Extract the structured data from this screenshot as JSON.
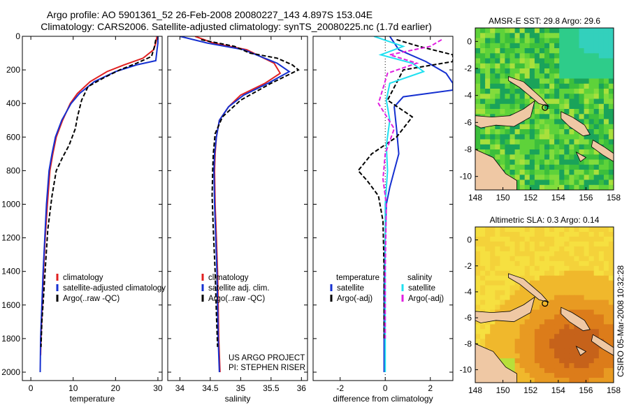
{
  "header": {
    "title_line1": "Argo profile: AO 5901361_52 26-Feb-2008 20080227_143 4.897S 153.04E",
    "title_line2": "Climatology: CARS2006. Satellite-adjusted climatology: synTS_20080225.nc (1.7d earlier)"
  },
  "side_label": "CSIRO 05-Mar-2008 10:32:28",
  "colors": {
    "red": "#e02020",
    "blue": "#1530d0",
    "black": "#000000",
    "cyan": "#20e0f0",
    "magenta": "#e020e0",
    "land": "#efc8a4"
  },
  "chart_data": [
    {
      "type": "line",
      "xlabel": "temperature",
      "ylabel": "",
      "xlim": [
        -2,
        31
      ],
      "ylim": [
        2050,
        0
      ],
      "xticks": [
        0,
        10,
        20,
        30
      ],
      "yticks": [
        0,
        200,
        400,
        600,
        800,
        1000,
        1200,
        1400,
        1600,
        1800,
        2000
      ],
      "legend_position": "lower-right",
      "series": [
        {
          "name": "climatology",
          "color": "red",
          "dash": "",
          "x": [
            29.8,
            29.5,
            29.0,
            26.5,
            22.0,
            18.0,
            14.0,
            11.0,
            9.3,
            7.5,
            6.0,
            5.2,
            4.5,
            3.9,
            3.4,
            3.0,
            2.7,
            2.4,
            2.3
          ],
          "y": [
            0,
            40,
            80,
            130,
            170,
            210,
            270,
            340,
            400,
            500,
            600,
            700,
            800,
            1000,
            1200,
            1400,
            1600,
            1800,
            1900
          ]
        },
        {
          "name": "satellite-adjusted climatology",
          "color": "blue",
          "dash": "",
          "x": [
            30.0,
            30.0,
            29.8,
            29.5,
            25.0,
            20.0,
            15.0,
            11.5,
            9.5,
            7.3,
            5.8,
            5.0,
            4.3,
            3.7,
            3.3,
            2.9,
            2.6,
            2.3,
            2.2
          ],
          "y": [
            0,
            40,
            80,
            145,
            170,
            210,
            270,
            340,
            400,
            500,
            600,
            700,
            800,
            1000,
            1200,
            1400,
            1600,
            1800,
            2000
          ]
        },
        {
          "name": "Argo(..raw -QC)",
          "color": "black",
          "dash": "6,3",
          "x": [
            29.5,
            29.2,
            28.5,
            25.0,
            21.0,
            17.0,
            13.5,
            12.0,
            11.0,
            10.5,
            9.0,
            7.5,
            6.0,
            5.0,
            4.0,
            3.5,
            3.0,
            2.6,
            2.4
          ],
          "y": [
            20,
            60,
            120,
            160,
            200,
            250,
            300,
            380,
            480,
            550,
            650,
            720,
            800,
            950,
            1150,
            1350,
            1550,
            1700,
            1850
          ]
        }
      ]
    },
    {
      "type": "line",
      "xlabel": "salinity",
      "ylabel": "",
      "xlim": [
        33.8,
        36.1
      ],
      "ylim": [
        2050,
        0
      ],
      "xticks": [
        34,
        34.5,
        35,
        35.5,
        36
      ],
      "xtick_labels": [
        "34",
        "34.5",
        "35",
        "35.5",
        "36"
      ],
      "legend_position": "lower-right",
      "series": [
        {
          "name": "climatology",
          "color": "red",
          "dash": "",
          "x": [
            34.25,
            34.55,
            35.1,
            35.55,
            35.65,
            35.4,
            35.0,
            34.8,
            34.65,
            34.6,
            34.58,
            34.57,
            34.58,
            34.6,
            34.62,
            34.63,
            34.64,
            34.65,
            34.66
          ],
          "y": [
            0,
            40,
            80,
            160,
            220,
            280,
            350,
            420,
            500,
            600,
            700,
            800,
            1000,
            1200,
            1400,
            1600,
            1800,
            1900,
            2000
          ]
        },
        {
          "name": "satellite adj. clim.",
          "color": "blue",
          "dash": "",
          "x": [
            34.0,
            34.45,
            35.05,
            35.6,
            35.8,
            35.45,
            35.05,
            34.8,
            34.65,
            34.6,
            34.57,
            34.56,
            34.57,
            34.59,
            34.61,
            34.62,
            34.63,
            34.64,
            34.65
          ],
          "y": [
            0,
            40,
            80,
            160,
            210,
            280,
            350,
            420,
            500,
            600,
            700,
            800,
            1000,
            1200,
            1400,
            1600,
            1800,
            1900,
            2000
          ]
        },
        {
          "name": "Argo(..raw -QC)",
          "color": "black",
          "dash": "6,3",
          "x": [
            34.35,
            34.9,
            35.15,
            35.6,
            35.85,
            35.95,
            35.5,
            35.0,
            34.7,
            34.58,
            34.55,
            34.54,
            34.53,
            34.55,
            34.58,
            34.6,
            34.62
          ],
          "y": [
            20,
            60,
            100,
            130,
            170,
            200,
            280,
            380,
            480,
            580,
            700,
            800,
            950,
            1150,
            1400,
            1650,
            1850
          ]
        }
      ]
    },
    {
      "type": "line",
      "xlabel": "difference from climatology",
      "ylabel": "",
      "xlim": [
        -3.2,
        3.0
      ],
      "ylim": [
        2050,
        0
      ],
      "xticks": [
        -2,
        0,
        2
      ],
      "legend_position": "lower-center",
      "legend_headers": [
        "temperature",
        "salinity"
      ],
      "zero_line": true,
      "series": [
        {
          "name": "satellite",
          "group": "temperature",
          "color": "blue",
          "dash": "",
          "x": [
            0.2,
            0.6,
            1.8,
            2.7,
            3.0,
            3.0,
            0.8,
            0.4,
            0.5,
            0.6,
            0.4,
            0.2,
            0.05,
            0.0,
            -0.05,
            -0.05,
            -0.05
          ],
          "y": [
            0,
            80,
            150,
            220,
            280,
            320,
            360,
            420,
            550,
            700,
            800,
            900,
            1000,
            1200,
            1500,
            1800,
            2000
          ]
        },
        {
          "name": "Argo(-adj)",
          "group": "temperature",
          "color": "black",
          "dash": "6,3",
          "x": [
            0.5,
            1.5,
            3.0,
            3.0,
            0.8,
            0.1,
            1.2,
            0.5,
            -0.6,
            -1.2,
            -0.8,
            -0.3,
            -0.1,
            -0.05,
            -0.05
          ],
          "y": [
            20,
            60,
            110,
            150,
            200,
            380,
            480,
            600,
            700,
            800,
            860,
            950,
            1100,
            1400,
            1800
          ]
        },
        {
          "name": "satellite",
          "group": "salinity",
          "color": "cyan",
          "dash": "",
          "x": [
            -0.5,
            0.8,
            -0.2,
            1.2,
            1.7,
            0.2,
            0.05,
            0.2,
            0.05,
            0.1,
            0.0,
            0.0,
            0.0,
            0.0
          ],
          "y": [
            0,
            60,
            110,
            160,
            210,
            280,
            380,
            500,
            650,
            800,
            1000,
            1400,
            1800,
            2000
          ]
        },
        {
          "name": "Argo(-adj)",
          "group": "salinity",
          "color": "magenta",
          "dash": "6,3",
          "x": [
            2.5,
            2.0,
            0.2,
            1.4,
            0.1,
            -0.3,
            0.4,
            0.0,
            -0.1,
            0.05,
            0.0,
            0.0
          ],
          "y": [
            20,
            60,
            110,
            160,
            220,
            400,
            550,
            700,
            850,
            1000,
            1400,
            1800
          ]
        }
      ]
    }
  ],
  "footer_credit": {
    "line1": "US ARGO PROJECT",
    "line2": "PI: STEPHEN RISER"
  },
  "maps": [
    {
      "title": "AMSR-E SST: 29.8 Argo: 29.6",
      "xticks": [
        "148",
        "150",
        "152",
        "154",
        "156",
        "158"
      ],
      "yticks": [
        "0",
        "-2",
        "-4",
        "-6",
        "-8",
        "-10"
      ],
      "palette": [
        "#1aa35a",
        "#3cbf3c",
        "#5ed23a",
        "#82dc3c",
        "#a8e03c",
        "#2ecc8a",
        "#33d0bc"
      ]
    },
    {
      "title": "Altimetric SLA: 0.3 Argo: 0.14",
      "xticks": [
        "148",
        "150",
        "152",
        "154",
        "156",
        "158"
      ],
      "yticks": [
        "0",
        "-2",
        "-4",
        "-6",
        "-8",
        "-10"
      ],
      "palette": [
        "#f4d23a",
        "#f0b82c",
        "#e89a22",
        "#dc7c1a",
        "#c6621a",
        "#b8e03a",
        "#f6e040"
      ]
    }
  ]
}
